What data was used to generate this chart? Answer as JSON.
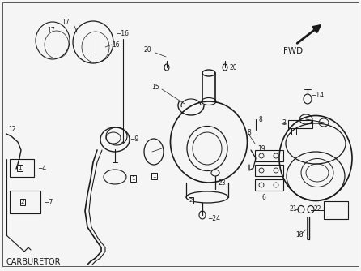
{
  "title": "CARBURETOR",
  "bg_color": "#f5f5f5",
  "line_color": "#1a1a1a",
  "fig_width": 4.46,
  "fig_height": 3.34,
  "dpi": 100,
  "title_fontsize": 7.0,
  "fwd_text": "FWD",
  "border_color": "#cccccc"
}
